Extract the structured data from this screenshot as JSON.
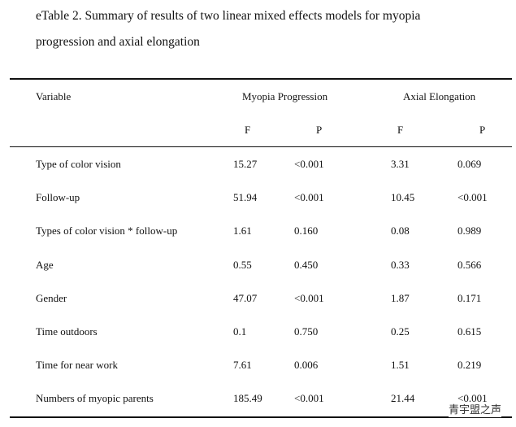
{
  "header": {
    "title_line1": "eTable 2. Summary of results of two linear mixed effects models for myopia",
    "title_line2": "progression and axial elongation"
  },
  "table": {
    "columns": [
      "Variable",
      "Myopia Progression",
      "Axial Elongation"
    ],
    "subcolumns": [
      "F",
      "P",
      "F",
      "P"
    ],
    "rows": [
      [
        "Type of color vision",
        "15.27",
        "<0.001",
        "3.31",
        "0.069"
      ],
      [
        "Follow-up",
        "51.94",
        "<0.001",
        "10.45",
        "<0.001"
      ],
      [
        "Types of color vision * follow-up",
        "1.61",
        "0.160",
        "0.08",
        "0.989"
      ],
      [
        "Age",
        "0.55",
        "0.450",
        "0.33",
        "0.566"
      ],
      [
        "Gender",
        "47.07",
        "<0.001",
        "1.87",
        "0.171"
      ],
      [
        "Time outdoors",
        "0.1",
        "0.750",
        "0.25",
        "0.615"
      ],
      [
        "Time for near work",
        "7.61",
        "0.006",
        "1.51",
        "0.219"
      ],
      [
        "Numbers of myopic parents",
        "185.49",
        "<0.001",
        "21.44",
        "<0.001"
      ]
    ]
  },
  "watermark": "青宇盟之声"
}
